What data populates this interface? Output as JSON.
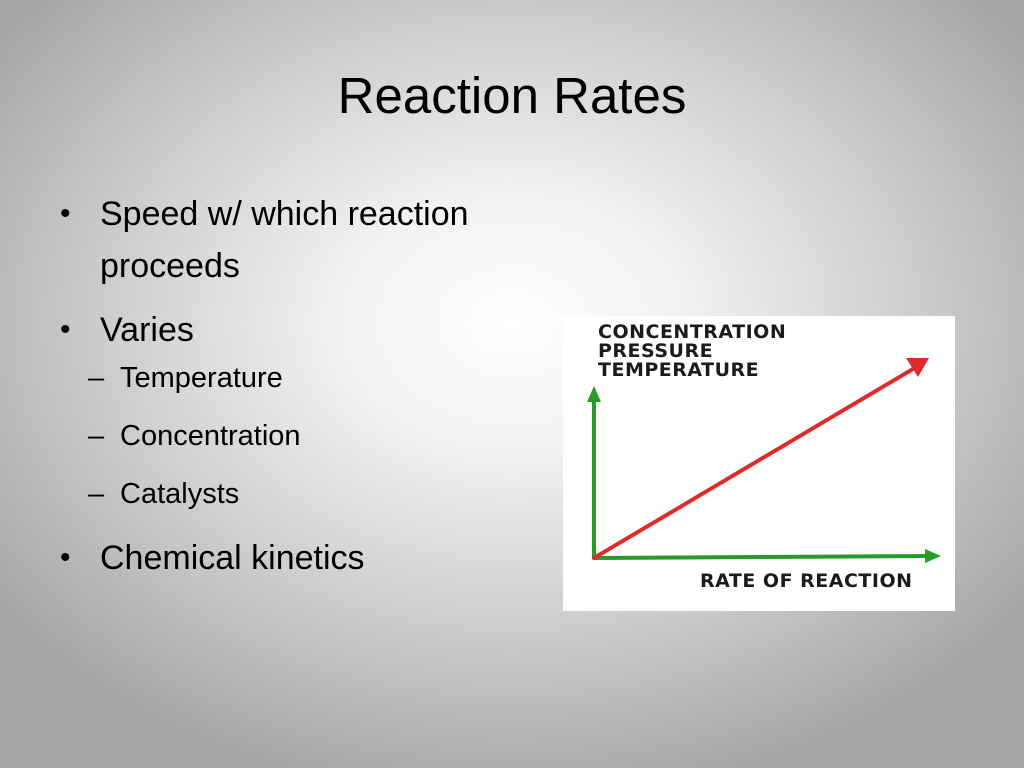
{
  "slide": {
    "title": "Reaction Rates",
    "bullets": [
      {
        "text": "Speed w/ which reaction proceeds"
      },
      {
        "text": "Varies",
        "sub_items": [
          "Temperature",
          "Concentration",
          "Catalysts"
        ]
      },
      {
        "text": "Chemical kinetics"
      }
    ],
    "bullet_symbol": "•",
    "sub_bullet_symbol": "–"
  },
  "figure": {
    "y_axis_labels": [
      "CONCENTRATION",
      "PRESSURE",
      "TEMPERATURE"
    ],
    "x_axis_label": "RATE OF REACTION",
    "axis_color": "#2a9a2a",
    "line_color": "#e02a2a"
  }
}
